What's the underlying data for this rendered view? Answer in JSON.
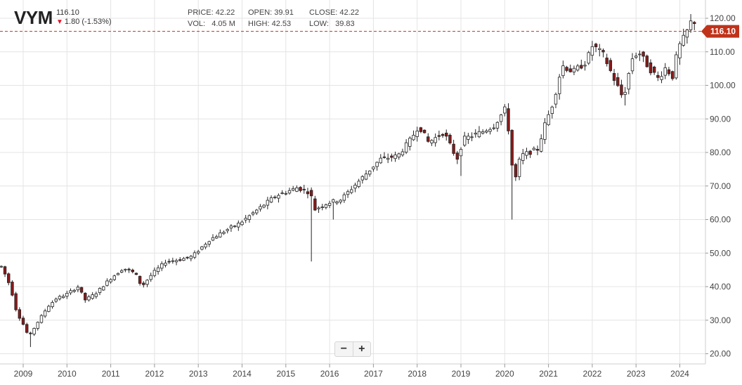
{
  "header": {
    "symbol": "VYM",
    "last": "116.10",
    "change": "1.80 (-1.53%)",
    "price_label": "PRICE:",
    "price": "42.22",
    "open_label": "OPEN:",
    "open": "39.91",
    "close_label": "CLOSE:",
    "close": "42.22",
    "vol_label": "VOL:",
    "vol": "4.05 M",
    "high_label": "HIGH:",
    "high": "42.53",
    "low_label": "LOW:",
    "low": "39.83"
  },
  "zoom": {
    "minus": "−",
    "plus": "+"
  },
  "colors": {
    "up": "#ffffff",
    "down": "#8b1a1a",
    "wick": "#222222",
    "grid": "#e4e4e4",
    "price_tag": "#c0321a",
    "price_line": "#c0321a"
  },
  "chart_data": {
    "type": "candlestick",
    "title": "VYM",
    "interval": "monthly",
    "x_ticks": [
      "2009",
      "2010",
      "2011",
      "2012",
      "2013",
      "2014",
      "2015",
      "2016",
      "2017",
      "2018",
      "2019",
      "2020",
      "2021",
      "2022",
      "2023",
      "2024"
    ],
    "y_ticks": [
      "20.00",
      "30.00",
      "40.00",
      "50.00",
      "60.00",
      "70.00",
      "80.00",
      "90.00",
      "100.00",
      "110.00",
      "120.00"
    ],
    "ylim": [
      17,
      124
    ],
    "last_price": "116.10",
    "anchors": [
      [
        2008.55,
        46
      ],
      [
        2008.75,
        40
      ],
      [
        2008.9,
        32
      ],
      [
        2009.0,
        30
      ],
      [
        2009.17,
        25
      ],
      [
        2009.4,
        30
      ],
      [
        2009.6,
        34
      ],
      [
        2009.8,
        36.5
      ],
      [
        2010.0,
        37.5
      ],
      [
        2010.3,
        40
      ],
      [
        2010.45,
        36
      ],
      [
        2010.7,
        38
      ],
      [
        2011.0,
        42
      ],
      [
        2011.33,
        45.5
      ],
      [
        2011.6,
        44
      ],
      [
        2011.75,
        40
      ],
      [
        2012.0,
        44
      ],
      [
        2012.3,
        47.5
      ],
      [
        2012.6,
        48
      ],
      [
        2012.9,
        49
      ],
      [
        2013.3,
        54
      ],
      [
        2013.7,
        57
      ],
      [
        2014.0,
        59
      ],
      [
        2014.4,
        63
      ],
      [
        2014.8,
        67
      ],
      [
        2015.0,
        68
      ],
      [
        2015.3,
        69.5
      ],
      [
        2015.6,
        68
      ],
      [
        2015.7,
        63
      ],
      [
        2016.0,
        65
      ],
      [
        2016.3,
        66
      ],
      [
        2016.6,
        70
      ],
      [
        2016.9,
        74
      ],
      [
        2017.2,
        78
      ],
      [
        2017.6,
        79
      ],
      [
        2017.9,
        84
      ],
      [
        2018.08,
        88
      ],
      [
        2018.3,
        83
      ],
      [
        2018.65,
        86
      ],
      [
        2018.95,
        78
      ],
      [
        2019.1,
        84
      ],
      [
        2019.5,
        86
      ],
      [
        2019.8,
        88
      ],
      [
        2020.05,
        93
      ],
      [
        2020.15,
        85
      ],
      [
        2020.25,
        70
      ],
      [
        2020.4,
        79
      ],
      [
        2020.6,
        80
      ],
      [
        2020.8,
        81
      ],
      [
        2020.95,
        88
      ],
      [
        2021.15,
        95
      ],
      [
        2021.35,
        106
      ],
      [
        2021.6,
        104
      ],
      [
        2021.9,
        107
      ],
      [
        2022.05,
        112
      ],
      [
        2022.3,
        109
      ],
      [
        2022.5,
        103
      ],
      [
        2022.75,
        96
      ],
      [
        2022.95,
        108
      ],
      [
        2023.1,
        110
      ],
      [
        2023.35,
        105
      ],
      [
        2023.55,
        102
      ],
      [
        2023.75,
        106
      ],
      [
        2023.85,
        101
      ],
      [
        2024.0,
        111
      ],
      [
        2024.17,
        115
      ],
      [
        2024.3,
        119
      ]
    ]
  }
}
